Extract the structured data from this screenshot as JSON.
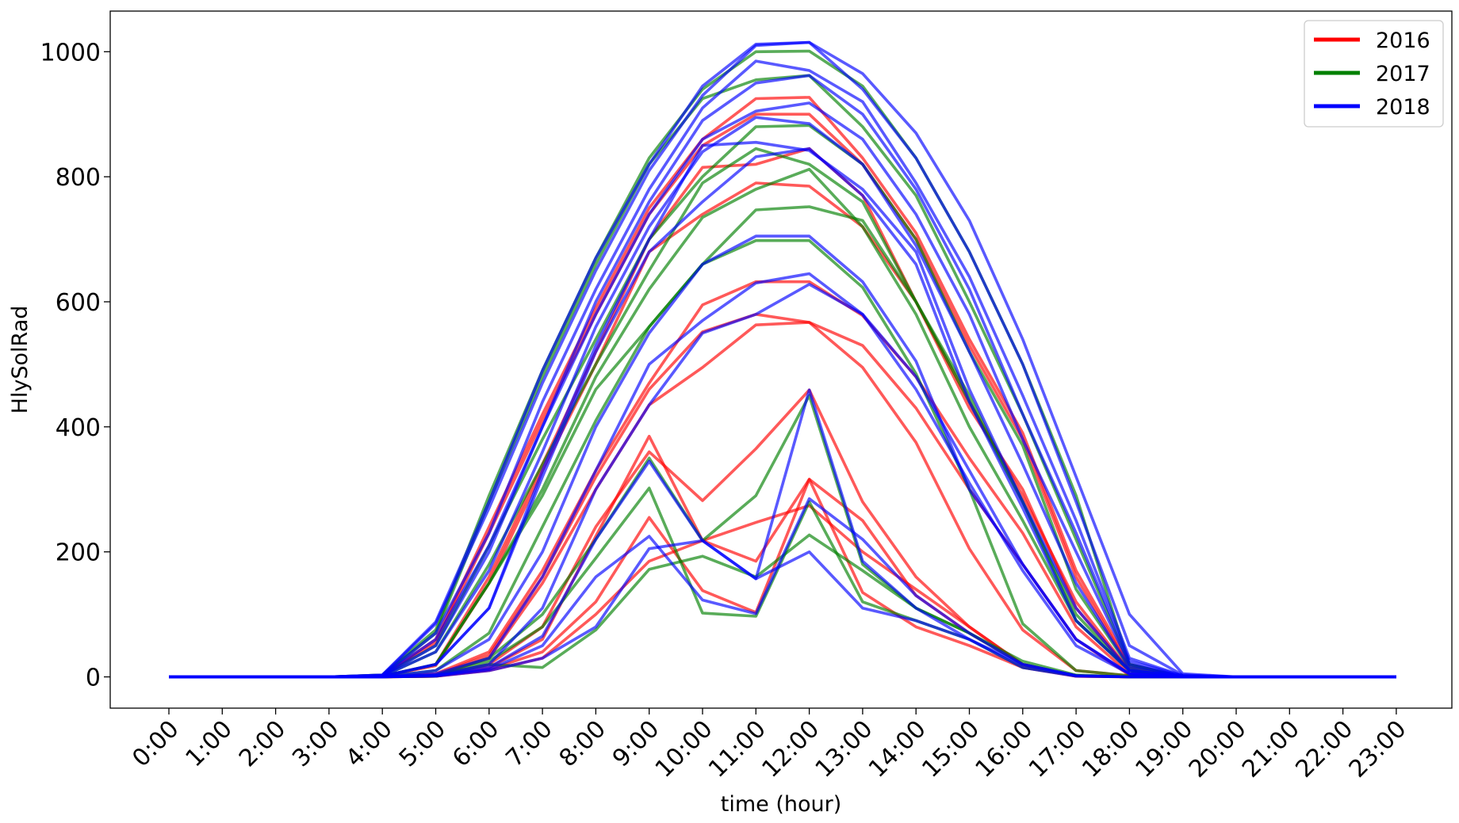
{
  "chart_data": {
    "type": "line",
    "title": "",
    "xlabel": "time (hour)",
    "ylabel": "HlySolRad",
    "categories": [
      "0:00",
      "1:00",
      "2:00",
      "3:00",
      "4:00",
      "5:00",
      "6:00",
      "7:00",
      "8:00",
      "9:00",
      "10:00",
      "11:00",
      "12:00",
      "13:00",
      "14:00",
      "15:00",
      "16:00",
      "17:00",
      "18:00",
      "19:00",
      "20:00",
      "21:00",
      "22:00",
      "23:00"
    ],
    "ylim": [
      -50,
      1065
    ],
    "yticks": [
      0,
      200,
      400,
      600,
      800,
      1000
    ],
    "grid": false,
    "legend_position": "top-right",
    "groups": [
      {
        "name": "2016",
        "color": "#ff0000"
      },
      {
        "name": "2017",
        "color": "#008000"
      },
      {
        "name": "2018",
        "color": "#0000ff"
      }
    ],
    "series": [
      {
        "group": "2016",
        "values": [
          0,
          0,
          0,
          0,
          2,
          60,
          240,
          420,
          590,
          750,
          860,
          925,
          927,
          830,
          710,
          540,
          390,
          170,
          20,
          0,
          0,
          0,
          0,
          0
        ]
      },
      {
        "group": "2016",
        "values": [
          0,
          0,
          0,
          0,
          2,
          55,
          230,
          410,
          580,
          740,
          850,
          900,
          900,
          820,
          700,
          530,
          380,
          160,
          15,
          0,
          0,
          0,
          0,
          0
        ]
      },
      {
        "group": "2016",
        "values": [
          0,
          0,
          0,
          0,
          1,
          20,
          160,
          340,
          520,
          700,
          815,
          820,
          845,
          770,
          600,
          430,
          300,
          110,
          10,
          0,
          0,
          0,
          0,
          0
        ]
      },
      {
        "group": "2016",
        "values": [
          0,
          0,
          0,
          0,
          1,
          18,
          150,
          330,
          500,
          680,
          740,
          790,
          785,
          720,
          600,
          440,
          290,
          120,
          10,
          0,
          0,
          0,
          0,
          0
        ]
      },
      {
        "group": "2016",
        "values": [
          0,
          0,
          0,
          0,
          0,
          5,
          40,
          170,
          330,
          470,
          595,
          632,
          632,
          578,
          480,
          350,
          230,
          80,
          5,
          0,
          0,
          0,
          0,
          0
        ]
      },
      {
        "group": "2016",
        "values": [
          0,
          0,
          0,
          0,
          0,
          3,
          35,
          160,
          320,
          460,
          552,
          580,
          567,
          530,
          430,
          300,
          180,
          60,
          3,
          0,
          0,
          0,
          0,
          0
        ]
      },
      {
        "group": "2016",
        "values": [
          0,
          0,
          0,
          0,
          0,
          2,
          30,
          150,
          300,
          435,
          495,
          563,
          567,
          495,
          375,
          205,
          75,
          10,
          2,
          0,
          0,
          0,
          0,
          0
        ]
      },
      {
        "group": "2016",
        "values": [
          0,
          0,
          0,
          0,
          0,
          2,
          20,
          80,
          240,
          360,
          282,
          365,
          459,
          280,
          160,
          80,
          20,
          2,
          0,
          0,
          0,
          0,
          0,
          0
        ]
      },
      {
        "group": "2016",
        "values": [
          0,
          0,
          0,
          0,
          0,
          1,
          15,
          60,
          225,
          385,
          218,
          185,
          316,
          250,
          130,
          70,
          20,
          2,
          0,
          0,
          0,
          0,
          0,
          0
        ]
      },
      {
        "group": "2016",
        "values": [
          0,
          0,
          0,
          0,
          0,
          1,
          12,
          40,
          120,
          255,
          138,
          103,
          316,
          135,
          80,
          50,
          15,
          1,
          0,
          0,
          0,
          0,
          0,
          0
        ]
      },
      {
        "group": "2016",
        "values": [
          0,
          0,
          0,
          0,
          0,
          1,
          10,
          30,
          100,
          185,
          218,
          247,
          274,
          200,
          140,
          80,
          20,
          1,
          0,
          0,
          0,
          0,
          0,
          0
        ]
      },
      {
        "group": "2017",
        "values": [
          0,
          0,
          0,
          0,
          3,
          75,
          290,
          490,
          670,
          830,
          940,
          1000,
          1001,
          945,
          830,
          680,
          500,
          290,
          20,
          0,
          0,
          0,
          0,
          0
        ]
      },
      {
        "group": "2017",
        "values": [
          0,
          0,
          0,
          0,
          3,
          70,
          280,
          480,
          660,
          820,
          925,
          955,
          962,
          880,
          770,
          600,
          420,
          220,
          20,
          0,
          0,
          0,
          0,
          0
        ]
      },
      {
        "group": "2017",
        "values": [
          0,
          0,
          0,
          0,
          2,
          50,
          210,
          380,
          540,
          700,
          800,
          880,
          882,
          820,
          700,
          520,
          370,
          140,
          15,
          0,
          0,
          0,
          0,
          0
        ]
      },
      {
        "group": "2017",
        "values": [
          0,
          0,
          0,
          0,
          1,
          40,
          180,
          340,
          500,
          650,
          790,
          845,
          820,
          760,
          600,
          450,
          280,
          100,
          10,
          0,
          0,
          0,
          0,
          0
        ]
      },
      {
        "group": "2017",
        "values": [
          0,
          0,
          0,
          0,
          1,
          20,
          150,
          300,
          480,
          620,
          735,
          780,
          812,
          720,
          580,
          400,
          250,
          90,
          10,
          0,
          0,
          0,
          0,
          0
        ]
      },
      {
        "group": "2017",
        "values": [
          0,
          0,
          0,
          0,
          1,
          20,
          150,
          290,
          460,
          560,
          660,
          747,
          752,
          730,
          600,
          440,
          280,
          90,
          10,
          0,
          0,
          0,
          0,
          0
        ]
      },
      {
        "group": "2017",
        "values": [
          0,
          0,
          0,
          0,
          0,
          10,
          70,
          240,
          410,
          560,
          660,
          698,
          698,
          623,
          485,
          300,
          85,
          10,
          2,
          0,
          0,
          0,
          0,
          0
        ]
      },
      {
        "group": "2017",
        "values": [
          0,
          0,
          0,
          0,
          0,
          3,
          30,
          100,
          220,
          350,
          218,
          290,
          450,
          180,
          110,
          70,
          20,
          2,
          0,
          0,
          0,
          0,
          0,
          0
        ]
      },
      {
        "group": "2017",
        "values": [
          0,
          0,
          0,
          0,
          0,
          2,
          25,
          80,
          190,
          302,
          102,
          97,
          280,
          120,
          90,
          60,
          15,
          2,
          0,
          0,
          0,
          0,
          0,
          0
        ]
      },
      {
        "group": "2017",
        "values": [
          0,
          0,
          0,
          0,
          0,
          1,
          20,
          15,
          75,
          172,
          193,
          160,
          227,
          170,
          110,
          70,
          25,
          3,
          0,
          0,
          0,
          0,
          0,
          0
        ]
      },
      {
        "group": "2018",
        "values": [
          0,
          0,
          0,
          0,
          3,
          88,
          280,
          490,
          670,
          820,
          945,
          1012,
          1015,
          965,
          870,
          730,
          540,
          320,
          100,
          5,
          0,
          0,
          0,
          0
        ]
      },
      {
        "group": "2018",
        "values": [
          0,
          0,
          0,
          0,
          3,
          85,
          270,
          470,
          650,
          810,
          930,
          1010,
          1015,
          940,
          830,
          680,
          500,
          280,
          50,
          3,
          0,
          0,
          0,
          0
        ]
      },
      {
        "group": "2018",
        "values": [
          0,
          0,
          0,
          0,
          2,
          70,
          230,
          440,
          620,
          780,
          910,
          985,
          970,
          920,
          790,
          640,
          450,
          250,
          30,
          2,
          0,
          0,
          0,
          0
        ]
      },
      {
        "group": "2018",
        "values": [
          0,
          0,
          0,
          0,
          2,
          60,
          210,
          400,
          600,
          760,
          890,
          950,
          962,
          900,
          780,
          620,
          420,
          230,
          25,
          2,
          0,
          0,
          0,
          0
        ]
      },
      {
        "group": "2018",
        "values": [
          0,
          0,
          0,
          0,
          1,
          50,
          200,
          400,
          580,
          740,
          860,
          905,
          918,
          860,
          740,
          580,
          380,
          200,
          20,
          1,
          0,
          0,
          0,
          0
        ]
      },
      {
        "group": "2018",
        "values": [
          0,
          0,
          0,
          0,
          1,
          40,
          170,
          360,
          560,
          720,
          840,
          895,
          885,
          820,
          690,
          520,
          340,
          150,
          15,
          1,
          0,
          0,
          0,
          0
        ]
      },
      {
        "group": "2018",
        "values": [
          0,
          0,
          0,
          0,
          1,
          20,
          110,
          330,
          530,
          700,
          850,
          855,
          842,
          780,
          680,
          460,
          280,
          110,
          10,
          1,
          0,
          0,
          0,
          0
        ]
      },
      {
        "group": "2018",
        "values": [
          0,
          0,
          0,
          0,
          1,
          20,
          110,
          320,
          520,
          680,
          760,
          832,
          845,
          770,
          660,
          440,
          270,
          90,
          10,
          1,
          0,
          0,
          0,
          0
        ]
      },
      {
        "group": "2018",
        "values": [
          0,
          0,
          0,
          0,
          0,
          10,
          60,
          200,
          400,
          550,
          660,
          705,
          705,
          632,
          505,
          300,
          180,
          60,
          5,
          0,
          0,
          0,
          0,
          0
        ]
      },
      {
        "group": "2018",
        "values": [
          0,
          0,
          0,
          0,
          0,
          5,
          30,
          160,
          330,
          500,
          570,
          630,
          645,
          580,
          480,
          330,
          180,
          60,
          5,
          0,
          0,
          0,
          0,
          0
        ]
      },
      {
        "group": "2018",
        "values": [
          0,
          0,
          0,
          0,
          0,
          3,
          20,
          110,
          300,
          435,
          550,
          580,
          628,
          580,
          460,
          310,
          170,
          50,
          5,
          0,
          0,
          0,
          0,
          0
        ]
      },
      {
        "group": "2018",
        "values": [
          0,
          0,
          0,
          0,
          0,
          2,
          15,
          65,
          220,
          345,
          218,
          157,
          459,
          185,
          110,
          60,
          20,
          2,
          0,
          0,
          0,
          0,
          0,
          0
        ]
      },
      {
        "group": "2018",
        "values": [
          0,
          0,
          0,
          0,
          0,
          2,
          12,
          50,
          160,
          225,
          123,
          101,
          285,
          220,
          130,
          70,
          20,
          2,
          0,
          0,
          0,
          0,
          0,
          0
        ]
      },
      {
        "group": "2018",
        "values": [
          0,
          0,
          0,
          0,
          0,
          1,
          10,
          30,
          80,
          205,
          218,
          157,
          200,
          110,
          90,
          60,
          15,
          1,
          0,
          0,
          0,
          0,
          0,
          0
        ]
      }
    ]
  }
}
